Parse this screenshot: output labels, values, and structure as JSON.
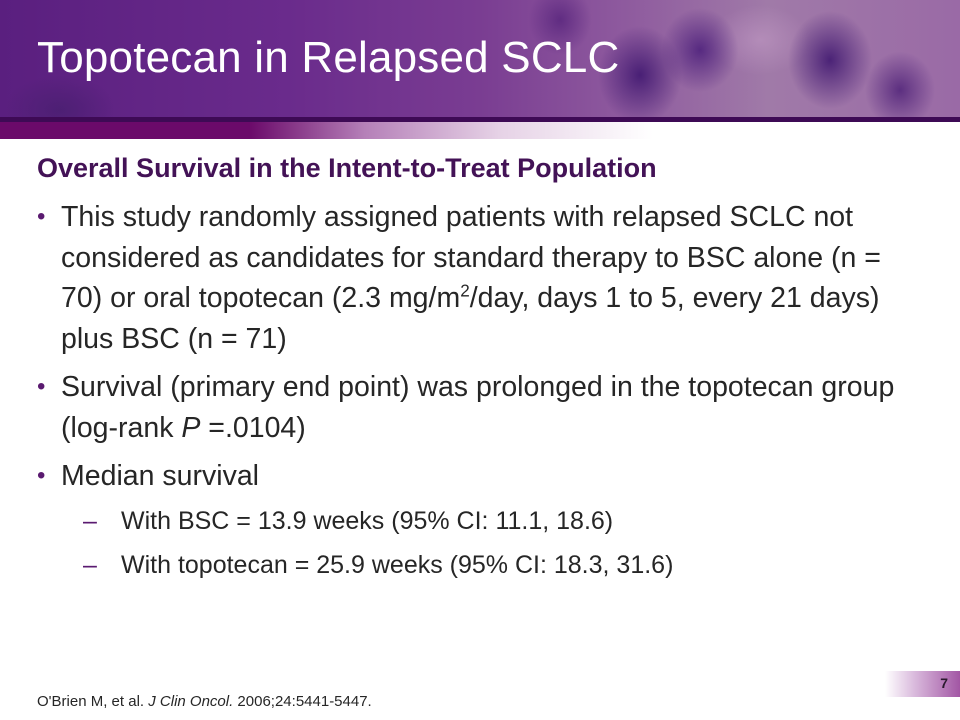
{
  "slide": {
    "title": "Topotecan in Relapsed SCLC",
    "subtitle": "Overall Survival in the Intent-to-Treat Population",
    "bullets": [
      {
        "text_before_sup": "This study randomly assigned patients with relapsed SCLC not considered as candidates for standard therapy to BSC alone (n = 70) or oral topotecan (2.3 mg/m",
        "sup": "2",
        "text_after_sup": "/day, days 1 to 5, every 21 days) plus BSC (n = 71)"
      },
      {
        "text_before_italic": "Survival (primary end point) was prolonged in the topotecan group (log-rank ",
        "italic": "P",
        "text_after_italic": " =.0104)"
      },
      {
        "text": "Median survival",
        "sub_bullets": [
          "With BSC = 13.9 weeks (95% CI: 11.1, 18.6)",
          "With topotecan = 25.9 weeks (95% CI: 18.3,  31.6)"
        ]
      }
    ],
    "bullet_glyph": "•",
    "dash_glyph": "–",
    "citation": {
      "authors": "O'Brien M, et al. ",
      "journal": "J Clin Oncol.",
      "details": " 2006;24:5441-5447."
    },
    "page_number": "7"
  },
  "colors": {
    "subtitle": "#431256",
    "body_text": "#262626",
    "accent": "#6b0a6a"
  }
}
